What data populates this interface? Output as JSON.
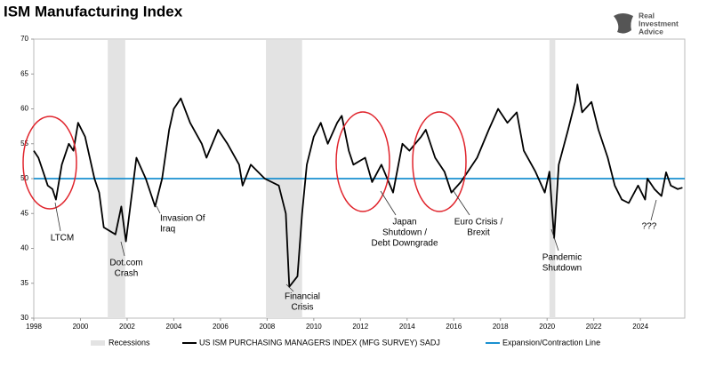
{
  "chart_data": {
    "type": "line",
    "title": "ISM Manufacturing Index",
    "logo_text": [
      "Real",
      "Investment",
      "Advice"
    ],
    "xlim": [
      1998,
      2025.9
    ],
    "ylim": [
      30,
      70
    ],
    "xticks": [
      1998,
      2000,
      2002,
      2004,
      2006,
      2008,
      2010,
      2012,
      2014,
      2016,
      2018,
      2020,
      2022,
      2024
    ],
    "yticks": [
      30,
      35,
      40,
      45,
      50,
      55,
      60,
      65,
      70
    ],
    "recessions": {
      "name": "Recessions",
      "color": "#e3e3e3",
      "spans": [
        [
          2001.17,
          2001.92
        ],
        [
          2007.95,
          2009.5
        ],
        [
          2020.1,
          2020.35
        ]
      ]
    },
    "reference_line": {
      "name": "Expansion/Contraction Line",
      "value": 50,
      "color": "#1a90d0"
    },
    "x": [
      1998.0,
      1998.2,
      1998.4,
      1998.6,
      1998.8,
      1998.95,
      1999.2,
      1999.5,
      1999.7,
      1999.9,
      2000.2,
      2000.6,
      2000.8,
      2001.0,
      2001.5,
      2001.75,
      2001.95,
      2002.4,
      2002.8,
      2003.2,
      2003.5,
      2003.8,
      2004.0,
      2004.3,
      2004.7,
      2005.2,
      2005.4,
      2005.9,
      2006.3,
      2006.8,
      2006.95,
      2007.3,
      2007.9,
      2008.5,
      2008.8,
      2008.9,
      2008.95,
      2009.3,
      2009.5,
      2009.7,
      2010.0,
      2010.3,
      2010.6,
      2011.0,
      2011.2,
      2011.5,
      2011.7,
      2012.2,
      2012.5,
      2012.9,
      2013.4,
      2013.8,
      2014.1,
      2014.6,
      2014.8,
      2015.2,
      2015.6,
      2015.9,
      2016.3,
      2016.6,
      2017.0,
      2017.5,
      2017.9,
      2018.3,
      2018.7,
      2019.0,
      2019.5,
      2019.9,
      2020.1,
      2020.3,
      2020.5,
      2020.9,
      2021.2,
      2021.3,
      2021.5,
      2021.9,
      2022.2,
      2022.6,
      2022.9,
      2023.2,
      2023.5,
      2023.9,
      2024.2,
      2024.3,
      2024.6,
      2024.9,
      2025.1,
      2025.3,
      2025.6,
      2025.8
    ],
    "series": [
      {
        "name": "US ISM PURCHASING MANAGERS INDEX (MFG SURVEY) SADJ",
        "color": "#000000",
        "values": [
          54,
          53,
          51,
          49,
          48.5,
          47,
          52,
          55,
          54,
          58,
          56,
          50,
          48,
          43,
          42,
          46,
          41,
          53,
          50,
          46,
          50,
          57,
          60,
          61.5,
          58,
          55,
          53,
          57,
          55,
          52,
          49,
          52,
          50,
          49,
          45,
          38,
          34.5,
          36,
          45,
          52,
          56,
          58,
          55,
          58,
          59,
          54,
          52,
          53,
          49.5,
          52,
          48,
          55,
          54,
          56,
          57,
          53,
          51,
          48,
          49.5,
          51,
          53,
          57,
          60,
          58,
          59.5,
          54,
          51,
          48,
          51,
          41.5,
          52,
          57,
          61,
          63.5,
          59.5,
          61,
          57,
          53,
          49,
          47,
          46.5,
          49,
          47,
          50,
          48.5,
          47.5,
          50.9,
          49,
          48.5,
          48.7
        ]
      }
    ],
    "annotations": [
      [
        "LTCM"
      ],
      [
        "Dot.com",
        "Crash"
      ],
      [
        "Invasion Of",
        "Iraq"
      ],
      [
        "Financial",
        "Crisis"
      ],
      [
        "Japan",
        "Shutdown /",
        "Debt Downgrade"
      ],
      [
        "Euro Crisis /",
        "Brexit"
      ],
      [
        "Pandemic",
        "Shutdown"
      ],
      [
        "???"
      ]
    ],
    "annotation_color": "#e0242c"
  }
}
